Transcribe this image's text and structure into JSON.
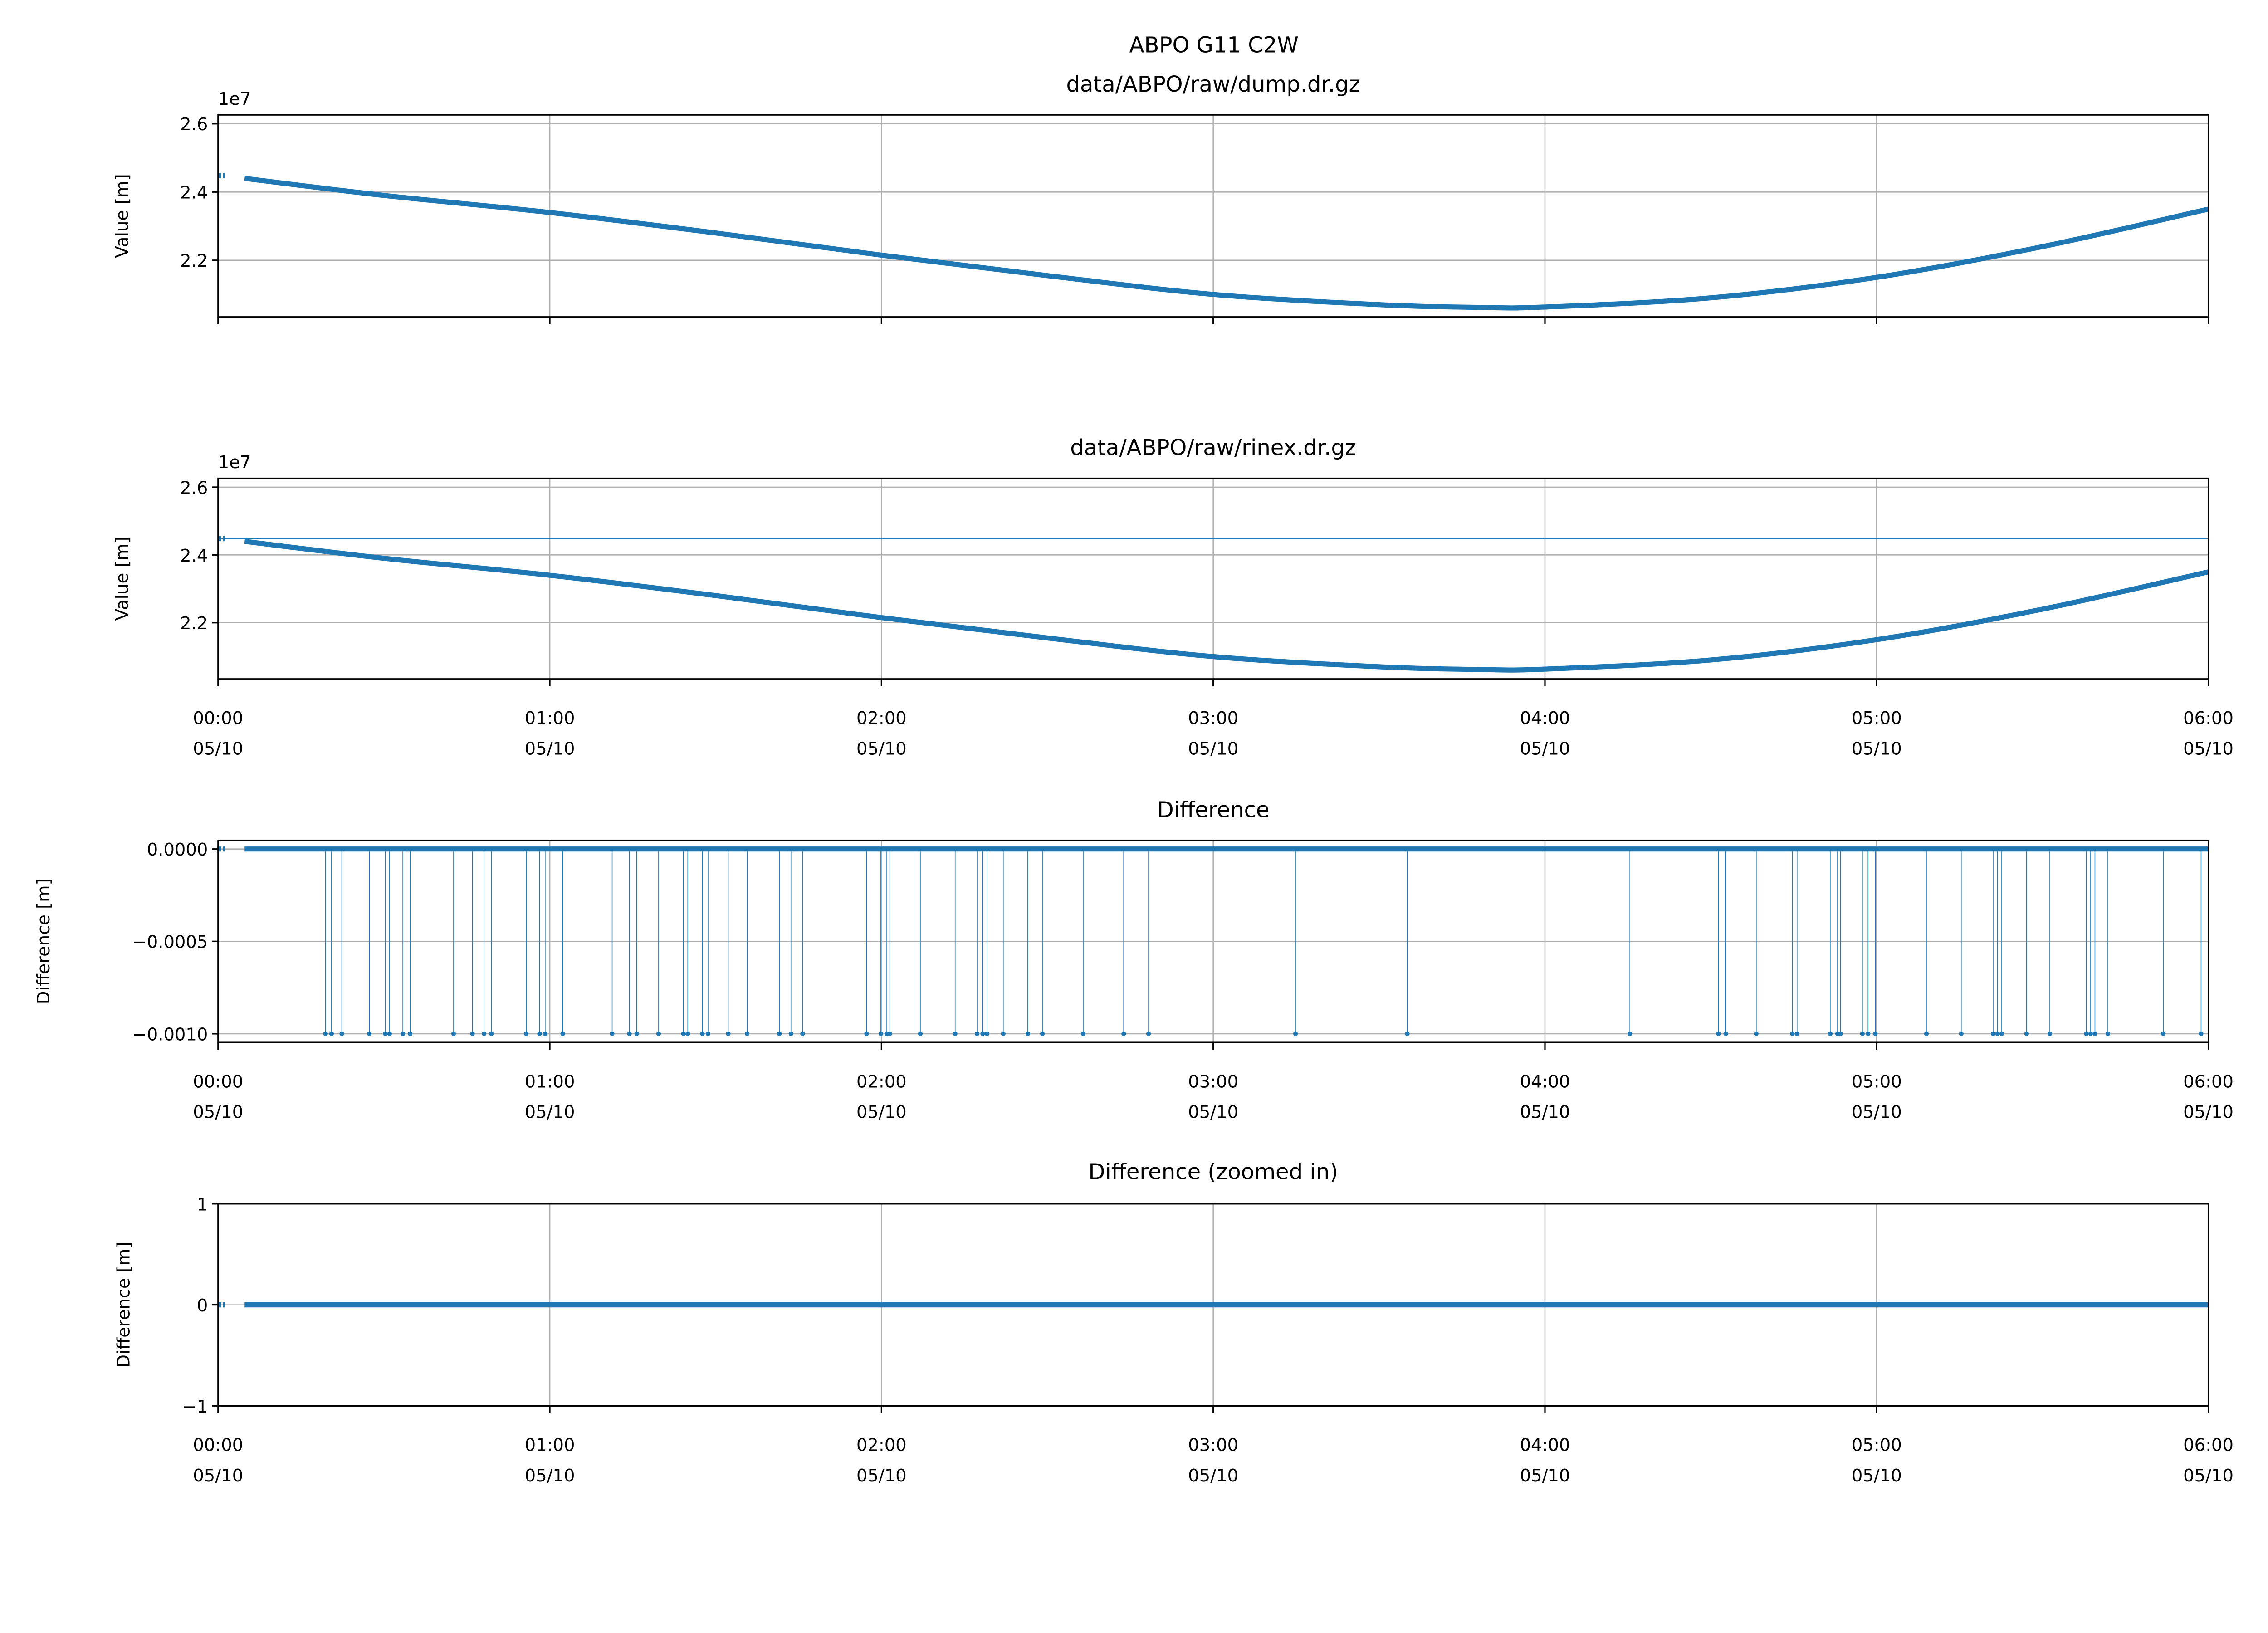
{
  "colors": {
    "series": "#1f77b4",
    "grid": "#b0b0b0",
    "axis": "#000000"
  },
  "chart_data": [
    {
      "type": "line",
      "suptitle": "ABPO G11 C2W",
      "title": "data/ABPO/raw/dump.dr.gz",
      "ylabel": "Value [m]",
      "offset_label": "1e7",
      "xlabel": "",
      "xlim_hours": [
        0,
        6
      ],
      "ylim": [
        2.034,
        2.626
      ],
      "yticks": [
        2.2,
        2.4,
        2.6
      ],
      "ytick_labels": [
        "2.2",
        "2.4",
        "2.6"
      ],
      "show_xtick_labels": false,
      "grid": true,
      "gap_hours": [
        0.02,
        0.08
      ],
      "x_hours": [
        0,
        0.08,
        0.5,
        1,
        1.5,
        2,
        2.5,
        3,
        3.5,
        3.8,
        4,
        4.5,
        5,
        5.5,
        6
      ],
      "values_1e7": [
        2.448,
        2.44,
        2.39,
        2.34,
        2.28,
        2.215,
        2.155,
        2.1,
        2.07,
        2.062,
        2.063,
        2.09,
        2.15,
        2.24,
        2.35
      ]
    },
    {
      "type": "line",
      "title": "data/ABPO/raw/rinex.dr.gz",
      "ylabel": "Value [m]",
      "offset_label": "1e7",
      "xlim_hours": [
        0,
        6
      ],
      "ylim": [
        2.034,
        2.626
      ],
      "yticks": [
        2.2,
        2.4,
        2.6
      ],
      "ytick_labels": [
        "2.2",
        "2.4",
        "2.6"
      ],
      "show_xtick_labels": true,
      "grid": true,
      "gap_hours": [
        0.02,
        0.08
      ],
      "connector_value_1e7": 2.448,
      "x_hours": [
        0,
        0.08,
        0.5,
        1,
        1.5,
        2,
        2.5,
        3,
        3.5,
        3.8,
        4,
        4.5,
        5,
        5.5,
        6
      ],
      "values_1e7": [
        2.448,
        2.44,
        2.39,
        2.34,
        2.28,
        2.215,
        2.155,
        2.1,
        2.07,
        2.062,
        2.063,
        2.09,
        2.15,
        2.24,
        2.35
      ]
    },
    {
      "type": "scatter",
      "title": "Difference",
      "ylabel": "Difference [m]",
      "xlim_hours": [
        0,
        6
      ],
      "ylim": [
        -0.001047,
        4.7e-05
      ],
      "yticks": [
        -0.001,
        -0.0005,
        0
      ],
      "ytick_labels": [
        "−0.0010",
        "−0.0005",
        "0.0000"
      ],
      "show_xtick_labels": true,
      "grid": true,
      "gap_hours": [
        0.02,
        0.08
      ],
      "baseline_value": 0,
      "spike_value": -0.001,
      "spike_x_hours": [
        0.324,
        0.342,
        0.373,
        0.456,
        0.504,
        0.517,
        0.557,
        0.579,
        0.71,
        0.767,
        0.802,
        0.824,
        0.929,
        0.969,
        0.986,
        1.039,
        1.188,
        1.24,
        1.262,
        1.328,
        1.403,
        1.416,
        1.46,
        1.477,
        1.538,
        1.595,
        1.692,
        1.727,
        1.762,
        1.955,
        1.998,
        2.016,
        2.025,
        2.117,
        2.222,
        2.288,
        2.305,
        2.318,
        2.367,
        2.441,
        2.485,
        2.608,
        2.73,
        2.805,
        3.248,
        3.585,
        4.256,
        4.523,
        4.545,
        4.637,
        4.746,
        4.76,
        4.86,
        4.882,
        4.891,
        4.957,
        4.974,
        4.996,
        5.15,
        5.255,
        5.351,
        5.364,
        5.377,
        5.452,
        5.522,
        5.632,
        5.645,
        5.658,
        5.697,
        5.864,
        5.978
      ]
    },
    {
      "type": "scatter",
      "title": "Difference (zoomed in)",
      "ylabel": "Difference [m]",
      "xlim_hours": [
        0,
        6
      ],
      "ylim": [
        -1,
        1
      ],
      "yticks": [
        -1,
        0,
        1
      ],
      "ytick_labels": [
        "−1",
        "0",
        "1"
      ],
      "show_xtick_labels": true,
      "grid": true,
      "gap_hours": [
        0.02,
        0.08
      ],
      "baseline_value": 0
    }
  ],
  "xticks": {
    "hours": [
      0,
      1,
      2,
      3,
      4,
      5,
      6
    ],
    "time_labels": [
      "00:00",
      "01:00",
      "02:00",
      "03:00",
      "04:00",
      "05:00",
      "06:00"
    ],
    "date_labels": [
      "05/10",
      "05/10",
      "05/10",
      "05/10",
      "05/10",
      "05/10",
      "05/10"
    ]
  }
}
